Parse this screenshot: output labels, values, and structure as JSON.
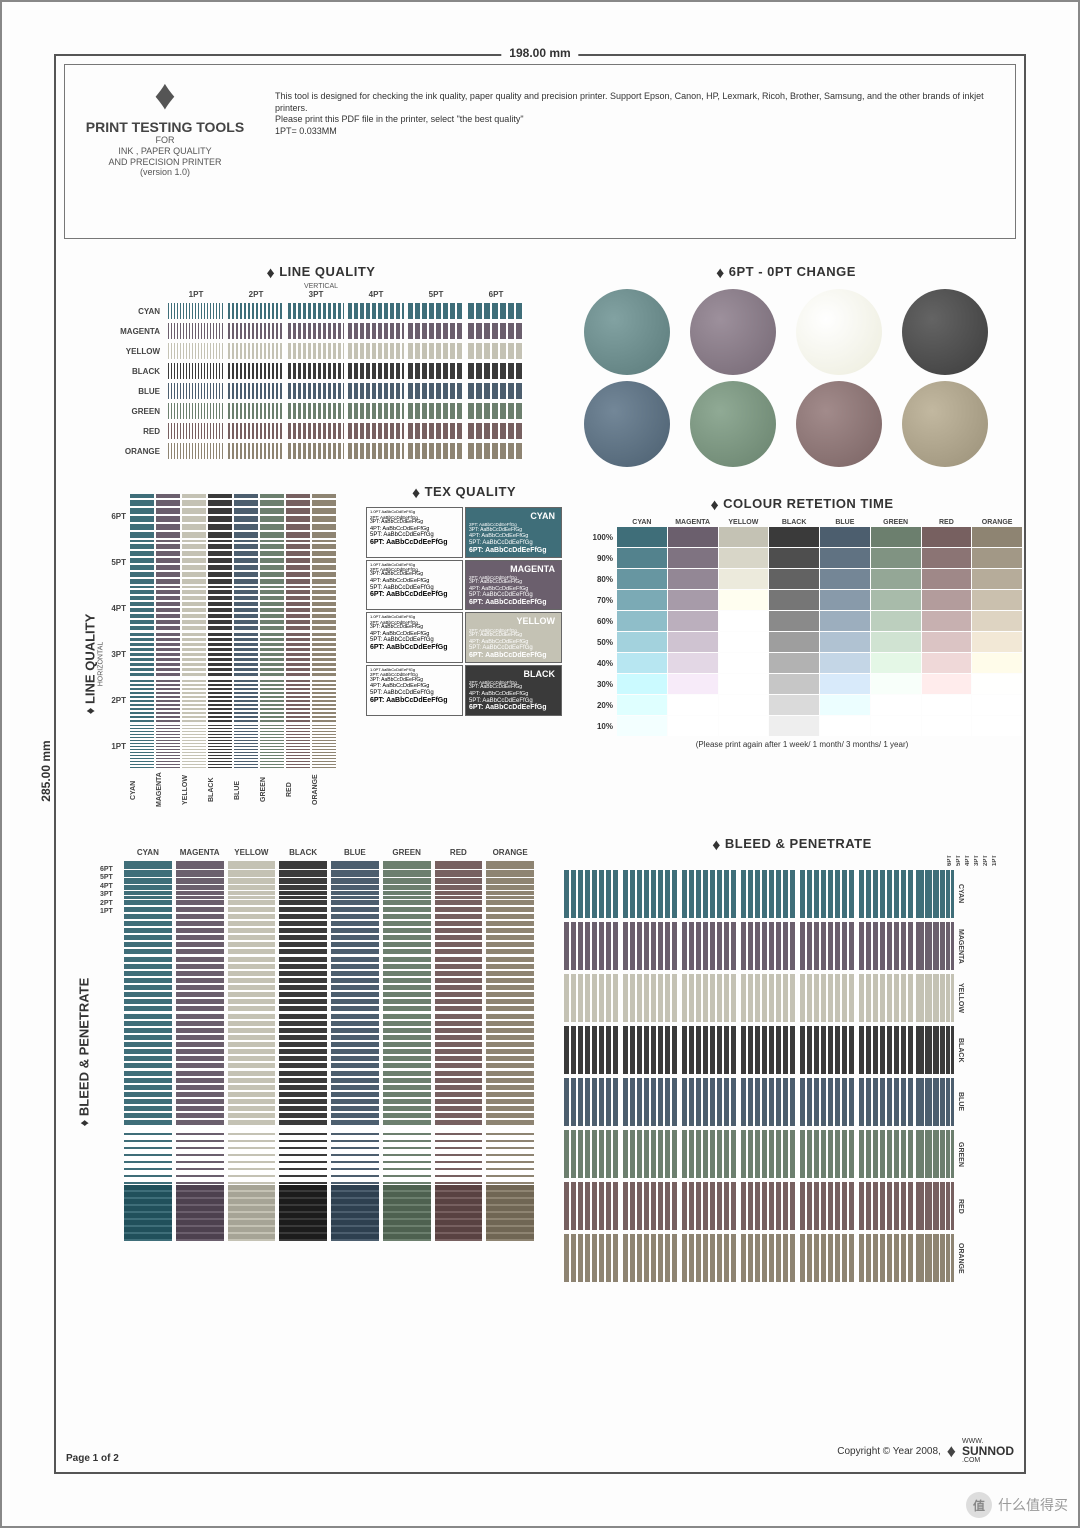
{
  "page": {
    "width_label": "198.00 mm",
    "height_label": "285.00 mm",
    "page_num": "Page 1 of 2"
  },
  "header": {
    "title": "PRINT TESTING TOOLS",
    "for": "FOR",
    "sub": "INK , PAPER QUALITY\nAND PRECISION PRINTER",
    "version": "(version 1.0)",
    "desc": "This tool is designed for checking the ink quality, paper quality and precision printer. Support Epson, Canon, HP, Lexmark, Ricoh, Brother, Samsung, and the other brands of inkjet printers.\nPlease print this PDF file in the printer, select \"the best quality\"\n1PT= 0.033MM"
  },
  "colors": {
    "CYAN": "#3f6e79",
    "MAGENTA": "#6b5f6d",
    "YELLOW": "#c4c2b4",
    "BLACK": "#3a3a3a",
    "BLUE": "#4c5e6e",
    "GREEN": "#6c7f6e",
    "RED": "#776060",
    "ORANGE": "#8e8472"
  },
  "color_list": [
    "CYAN",
    "MAGENTA",
    "YELLOW",
    "BLACK",
    "BLUE",
    "GREEN",
    "RED",
    "ORANGE"
  ],
  "pt_list": [
    "1PT",
    "2PT",
    "3PT",
    "4PT",
    "5PT",
    "6PT"
  ],
  "sections": {
    "lqv": {
      "title": "LINE QUALITY",
      "sub": "VERTICAL"
    },
    "lqh": {
      "title": "LINE QUALITY",
      "sub": "HORIZONTAL"
    },
    "circles": {
      "title": "6PT - 0PT CHANGE",
      "colors": [
        "#5a7a7a",
        "#756874",
        "#ececdc",
        "#3c3c3c",
        "#4b5f70",
        "#68826d",
        "#7a6363",
        "#9a9078"
      ]
    },
    "texq": {
      "title": "TEX QUALITY",
      "labels": [
        "CYAN",
        "MAGENTA",
        "YELLOW",
        "BLACK"
      ],
      "sample": {
        "l1": "1.0PT AaBbCcDdEeFfGg",
        "l2": "2PT: AaBbCcDdEeFfGg",
        "l3": "3PT: AaBbCcDdEeFfGg",
        "l4": "4PT: AaBbCcDdEeFfGg",
        "l5": "5PT: AaBbCcDdEeFfGg",
        "l6": "6PT: AaBbCcDdEeFfGg"
      }
    },
    "crt": {
      "title": "COLOUR RETETION TIME",
      "rows": [
        "100%",
        "90%",
        "80%",
        "70%",
        "60%",
        "50%",
        "40%",
        "30%",
        "20%",
        "10%"
      ],
      "note": "(Please print again after 1 week/ 1 month/ 3 months/ 1 year)"
    },
    "bp": {
      "title": "BLEED & PENETRATE"
    }
  },
  "footer": {
    "copyright": "Copyright © Year 2008,",
    "brand_pre": "WWW.",
    "brand": "SUNNOD",
    "brand_suf": ".COM"
  },
  "watermark": {
    "text": "什么值得买",
    "badge": "值"
  }
}
